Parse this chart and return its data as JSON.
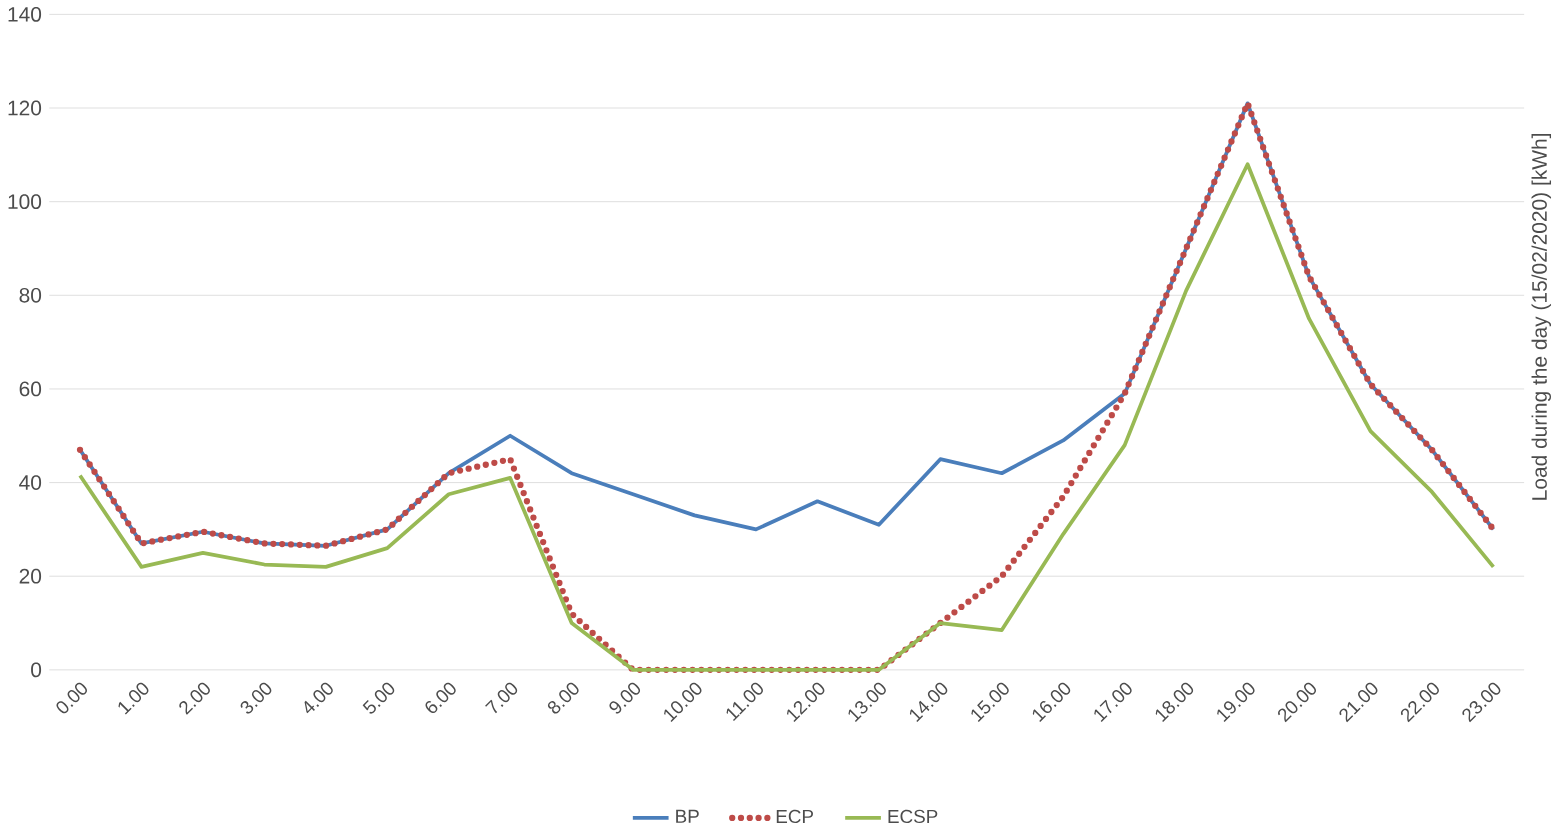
{
  "chart_data": {
    "type": "line",
    "ylabel": "Load during the day (15/02/2020) [kWh]",
    "categories": [
      "0.00",
      "1.00",
      "2.00",
      "3.00",
      "4.00",
      "5.00",
      "6.00",
      "7.00",
      "8.00",
      "9.00",
      "10.00",
      "11.00",
      "12.00",
      "13.00",
      "14.00",
      "15.00",
      "16.00",
      "17.00",
      "18.00",
      "19.00",
      "20.00",
      "21.00",
      "22.00",
      "23.00"
    ],
    "series": [
      {
        "name": "BP",
        "color": "#4a7ebb",
        "line_style": "solid",
        "values": [
          47,
          27,
          29.5,
          27,
          26.5,
          30,
          42,
          50,
          42,
          37.5,
          33,
          30,
          36,
          31,
          45,
          42,
          49,
          59,
          90,
          121,
          84,
          61,
          47,
          30
        ]
      },
      {
        "name": "ECP",
        "color": "#be4b48",
        "line_style": "dotted",
        "values": [
          47,
          27,
          29.5,
          27,
          26.5,
          30,
          42,
          45,
          12,
          0,
          0,
          0,
          0,
          0,
          10,
          20,
          37,
          59,
          90,
          121,
          84,
          61,
          47,
          30
        ]
      },
      {
        "name": "ECSP",
        "color": "#98b954",
        "line_style": "solid",
        "values": [
          41.5,
          22,
          25,
          22.5,
          22,
          26,
          37.5,
          41,
          10,
          0,
          0,
          0,
          0,
          0,
          10,
          8.5,
          29,
          48,
          81,
          108,
          75,
          51,
          38,
          22
        ]
      }
    ],
    "ylim": [
      0,
      140
    ],
    "yticks": [
      0,
      20,
      40,
      60,
      80,
      100,
      120,
      140
    ],
    "grid": "y",
    "legend": "bottom",
    "marker": "none"
  }
}
